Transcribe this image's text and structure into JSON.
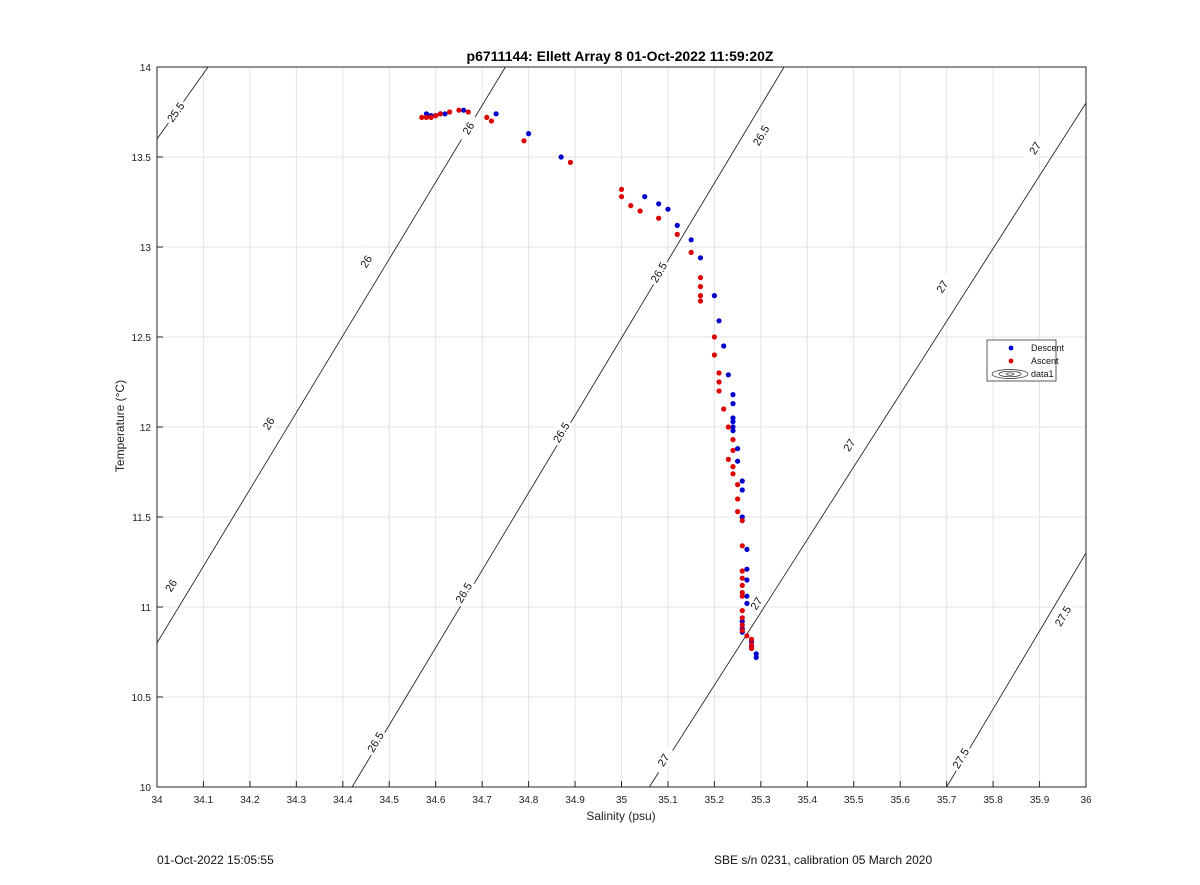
{
  "chart_data": {
    "type": "scatter",
    "title": "p6711144: Ellett Array 8 01-Oct-2022 11:59:20Z",
    "xlabel": "Salinity (psu)",
    "ylabel": "Temperature (°C)",
    "xlim": [
      34,
      36
    ],
    "ylim": [
      10,
      14
    ],
    "xticks": [
      34,
      34.1,
      34.2,
      34.3,
      34.4,
      34.5,
      34.6,
      34.7,
      34.8,
      34.9,
      35,
      35.1,
      35.2,
      35.3,
      35.4,
      35.5,
      35.6,
      35.7,
      35.8,
      35.9,
      36
    ],
    "xtick_labels": [
      "34",
      "34.1",
      "34.2",
      "34.3",
      "34.4",
      "34.5",
      "34.6",
      "34.7",
      "34.8",
      "34.9",
      "35",
      "35.1",
      "35.2",
      "35.3",
      "35.4",
      "35.5",
      "35.6",
      "35.7",
      "35.8",
      "35.9",
      "36"
    ],
    "yticks": [
      10,
      10.5,
      11,
      11.5,
      12,
      12.5,
      13,
      13.5,
      14
    ],
    "ytick_labels": [
      "10",
      "10.5",
      "11",
      "11.5",
      "12",
      "12.5",
      "13",
      "13.5",
      "14"
    ],
    "grid": true,
    "legend_position": "right",
    "contours": [
      {
        "label": "25.5",
        "points": [
          [
            34.0,
            13.6
          ],
          [
            34.11,
            14.0
          ]
        ],
        "labels_at": [
          [
            34.04,
            13.75
          ]
        ]
      },
      {
        "label": "26",
        "points": [
          [
            34.0,
            10.8
          ],
          [
            34.75,
            14.0
          ]
        ],
        "labels_at": [
          [
            34.03,
            11.12
          ],
          [
            34.24,
            12.02
          ],
          [
            34.45,
            12.92
          ],
          [
            34.67,
            13.66
          ]
        ]
      },
      {
        "label": "26.5",
        "points": [
          [
            34.42,
            10.0
          ],
          [
            35.35,
            14.0
          ]
        ],
        "labels_at": [
          [
            34.47,
            10.25
          ],
          [
            34.66,
            11.08
          ],
          [
            34.87,
            11.97
          ],
          [
            35.08,
            12.86
          ],
          [
            35.3,
            13.62
          ]
        ]
      },
      {
        "label": "27",
        "points": [
          [
            35.06,
            10.0
          ],
          [
            36.0,
            13.8
          ]
        ],
        "labels_at": [
          [
            35.09,
            10.15
          ],
          [
            35.29,
            11.02
          ],
          [
            35.49,
            11.9
          ],
          [
            35.69,
            12.78
          ],
          [
            35.89,
            13.55
          ]
        ]
      },
      {
        "label": "27.5",
        "points": [
          [
            35.7,
            10.0
          ],
          [
            36.0,
            11.3
          ]
        ],
        "labels_at": [
          [
            35.73,
            10.16
          ],
          [
            35.95,
            10.95
          ]
        ]
      }
    ],
    "series": [
      {
        "name": "Descent",
        "color": "#0000cc",
        "marker": "dot",
        "points": [
          [
            34.58,
            13.74
          ],
          [
            34.59,
            13.73
          ],
          [
            34.6,
            13.73
          ],
          [
            34.61,
            13.74
          ],
          [
            34.62,
            13.74
          ],
          [
            34.66,
            13.76
          ],
          [
            34.73,
            13.74
          ],
          [
            34.8,
            13.63
          ],
          [
            34.87,
            13.5
          ],
          [
            35.05,
            13.28
          ],
          [
            35.08,
            13.24
          ],
          [
            35.1,
            13.21
          ],
          [
            35.12,
            13.12
          ],
          [
            35.15,
            13.04
          ],
          [
            35.17,
            12.94
          ],
          [
            35.2,
            12.73
          ],
          [
            35.21,
            12.59
          ],
          [
            35.22,
            12.45
          ],
          [
            35.23,
            12.29
          ],
          [
            35.24,
            12.18
          ],
          [
            35.24,
            12.13
          ],
          [
            35.24,
            12.05
          ],
          [
            35.24,
            12.03
          ],
          [
            35.24,
            12.0
          ],
          [
            35.24,
            11.98
          ],
          [
            35.25,
            11.88
          ],
          [
            35.25,
            11.81
          ],
          [
            35.26,
            11.7
          ],
          [
            35.26,
            11.65
          ],
          [
            35.26,
            11.5
          ],
          [
            35.27,
            11.32
          ],
          [
            35.27,
            11.21
          ],
          [
            35.27,
            11.15
          ],
          [
            35.27,
            11.06
          ],
          [
            35.27,
            11.02
          ],
          [
            35.26,
            10.92
          ],
          [
            35.26,
            10.88
          ],
          [
            35.26,
            10.86
          ],
          [
            35.28,
            10.81
          ],
          [
            35.28,
            10.78
          ],
          [
            35.29,
            10.74
          ],
          [
            35.29,
            10.72
          ]
        ]
      },
      {
        "name": "Ascent",
        "color": "#dd0000",
        "marker": "dot",
        "points": [
          [
            34.57,
            13.72
          ],
          [
            34.58,
            13.72
          ],
          [
            34.59,
            13.72
          ],
          [
            34.6,
            13.73
          ],
          [
            34.61,
            13.74
          ],
          [
            34.63,
            13.75
          ],
          [
            34.65,
            13.76
          ],
          [
            34.67,
            13.75
          ],
          [
            34.71,
            13.72
          ],
          [
            34.72,
            13.7
          ],
          [
            34.79,
            13.59
          ],
          [
            34.89,
            13.47
          ],
          [
            35.0,
            13.32
          ],
          [
            35.0,
            13.28
          ],
          [
            35.02,
            13.23
          ],
          [
            35.04,
            13.2
          ],
          [
            35.08,
            13.16
          ],
          [
            35.12,
            13.07
          ],
          [
            35.15,
            12.97
          ],
          [
            35.17,
            12.83
          ],
          [
            35.17,
            12.78
          ],
          [
            35.17,
            12.73
          ],
          [
            35.17,
            12.7
          ],
          [
            35.2,
            12.5
          ],
          [
            35.2,
            12.4
          ],
          [
            35.21,
            12.3
          ],
          [
            35.21,
            12.25
          ],
          [
            35.21,
            12.2
          ],
          [
            35.22,
            12.1
          ],
          [
            35.23,
            12.0
          ],
          [
            35.24,
            11.93
          ],
          [
            35.24,
            11.87
          ],
          [
            35.23,
            11.82
          ],
          [
            35.24,
            11.78
          ],
          [
            35.24,
            11.74
          ],
          [
            35.25,
            11.68
          ],
          [
            35.25,
            11.6
          ],
          [
            35.25,
            11.53
          ],
          [
            35.26,
            11.48
          ],
          [
            35.26,
            11.34
          ],
          [
            35.26,
            11.2
          ],
          [
            35.26,
            11.16
          ],
          [
            35.26,
            11.12
          ],
          [
            35.26,
            11.08
          ],
          [
            35.26,
            11.06
          ],
          [
            35.26,
            10.98
          ],
          [
            35.26,
            10.94
          ],
          [
            35.26,
            10.9
          ],
          [
            35.26,
            10.87
          ],
          [
            35.27,
            10.84
          ],
          [
            35.28,
            10.82
          ],
          [
            35.28,
            10.79
          ],
          [
            35.28,
            10.77
          ]
        ]
      }
    ],
    "legend_entries": [
      {
        "name": "Descent",
        "color": "#0000cc"
      },
      {
        "name": "Ascent",
        "color": "#dd0000"
      },
      {
        "name": "data1",
        "color": "#000000",
        "symbol": "contour"
      }
    ]
  },
  "footer": {
    "date_generated": "01-Oct-2022 15:05:55",
    "instrument": "SBE s/n 0231, calibration 05 March 2020"
  }
}
